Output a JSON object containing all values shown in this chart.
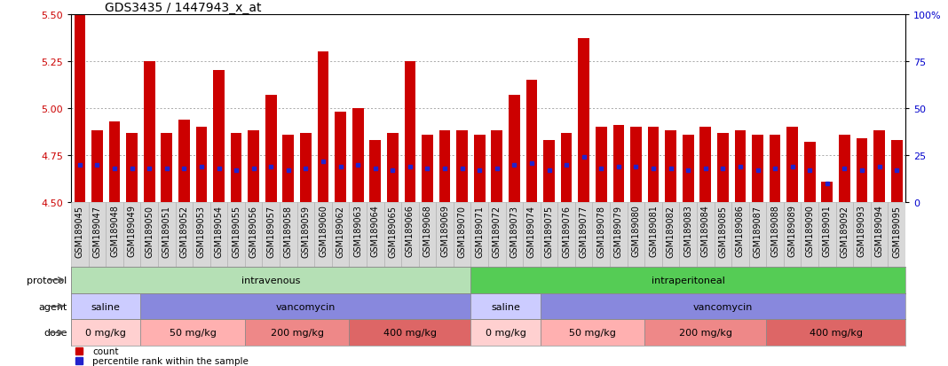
{
  "title": "GDS3435 / 1447943_x_at",
  "samples": [
    "GSM189045",
    "GSM189047",
    "GSM189048",
    "GSM189049",
    "GSM189050",
    "GSM189051",
    "GSM189052",
    "GSM189053",
    "GSM189054",
    "GSM189055",
    "GSM189056",
    "GSM189057",
    "GSM189058",
    "GSM189059",
    "GSM189060",
    "GSM189062",
    "GSM189063",
    "GSM189064",
    "GSM189065",
    "GSM189066",
    "GSM189068",
    "GSM189069",
    "GSM189070",
    "GSM189071",
    "GSM189072",
    "GSM189073",
    "GSM189074",
    "GSM189075",
    "GSM189076",
    "GSM189077",
    "GSM189078",
    "GSM189079",
    "GSM189080",
    "GSM189081",
    "GSM189082",
    "GSM189083",
    "GSM189084",
    "GSM189085",
    "GSM189086",
    "GSM189087",
    "GSM189088",
    "GSM189089",
    "GSM189090",
    "GSM189091",
    "GSM189092",
    "GSM189093",
    "GSM189094",
    "GSM189095"
  ],
  "red_values": [
    5.5,
    4.88,
    4.93,
    4.87,
    5.25,
    4.87,
    4.94,
    4.9,
    5.2,
    4.87,
    4.88,
    5.07,
    4.86,
    4.87,
    5.3,
    4.98,
    5.0,
    4.83,
    4.87,
    5.25,
    4.86,
    4.88,
    4.88,
    4.86,
    4.88,
    5.07,
    5.15,
    4.83,
    4.87,
    5.37,
    4.9,
    4.91,
    4.9,
    4.9,
    4.88,
    4.86,
    4.9,
    4.87,
    4.88,
    4.86,
    4.86,
    4.9,
    4.82,
    4.61,
    4.86,
    4.84,
    4.88,
    4.83
  ],
  "blue_values": [
    20,
    20,
    18,
    18,
    18,
    18,
    18,
    19,
    18,
    17,
    18,
    19,
    17,
    18,
    22,
    19,
    20,
    18,
    17,
    19,
    18,
    18,
    18,
    17,
    18,
    20,
    21,
    17,
    20,
    24,
    18,
    19,
    19,
    18,
    18,
    17,
    18,
    18,
    19,
    17,
    18,
    19,
    17,
    10,
    18,
    17,
    19,
    17
  ],
  "ylim_left": [
    4.5,
    5.5
  ],
  "ylim_right": [
    0,
    100
  ],
  "yticks_left": [
    4.5,
    4.75,
    5.0,
    5.25,
    5.5
  ],
  "yticks_right": [
    0,
    25,
    50,
    75,
    100
  ],
  "bar_color": "#cc0000",
  "dot_color": "#2222cc",
  "bar_bottom": 4.5,
  "protocol_groups": [
    {
      "label": "intravenous",
      "start": 0,
      "end": 23,
      "color": "#b5e0b5"
    },
    {
      "label": "intraperitoneal",
      "start": 23,
      "end": 48,
      "color": "#55cc55"
    }
  ],
  "agent_groups": [
    {
      "label": "saline",
      "start": 0,
      "end": 4,
      "color": "#ccccff"
    },
    {
      "label": "vancomycin",
      "start": 4,
      "end": 23,
      "color": "#8888dd"
    },
    {
      "label": "saline",
      "start": 23,
      "end": 27,
      "color": "#ccccff"
    },
    {
      "label": "vancomycin",
      "start": 27,
      "end": 48,
      "color": "#8888dd"
    }
  ],
  "dose_groups": [
    {
      "label": "0 mg/kg",
      "start": 0,
      "end": 4,
      "color": "#ffd0d0"
    },
    {
      "label": "50 mg/kg",
      "start": 4,
      "end": 10,
      "color": "#ffb0b0"
    },
    {
      "label": "200 mg/kg",
      "start": 10,
      "end": 16,
      "color": "#ee8888"
    },
    {
      "label": "400 mg/kg",
      "start": 16,
      "end": 23,
      "color": "#dd6666"
    },
    {
      "label": "0 mg/kg",
      "start": 23,
      "end": 27,
      "color": "#ffd0d0"
    },
    {
      "label": "50 mg/kg",
      "start": 27,
      "end": 33,
      "color": "#ffb0b0"
    },
    {
      "label": "200 mg/kg",
      "start": 33,
      "end": 40,
      "color": "#ee8888"
    },
    {
      "label": "400 mg/kg",
      "start": 40,
      "end": 48,
      "color": "#dd6666"
    }
  ],
  "row_labels": [
    "protocol",
    "agent",
    "dose"
  ],
  "grid_color": "#888888",
  "background_color": "#ffffff",
  "tick_label_color_left": "#cc0000",
  "tick_label_color_right": "#0000cc",
  "title_fontsize": 10,
  "bar_tick_fontsize": 7,
  "ytick_fontsize": 8,
  "row_fontsize": 8,
  "legend_count_color": "#cc0000",
  "legend_pct_color": "#2222cc",
  "xtick_bg_color": "#d8d8d8"
}
